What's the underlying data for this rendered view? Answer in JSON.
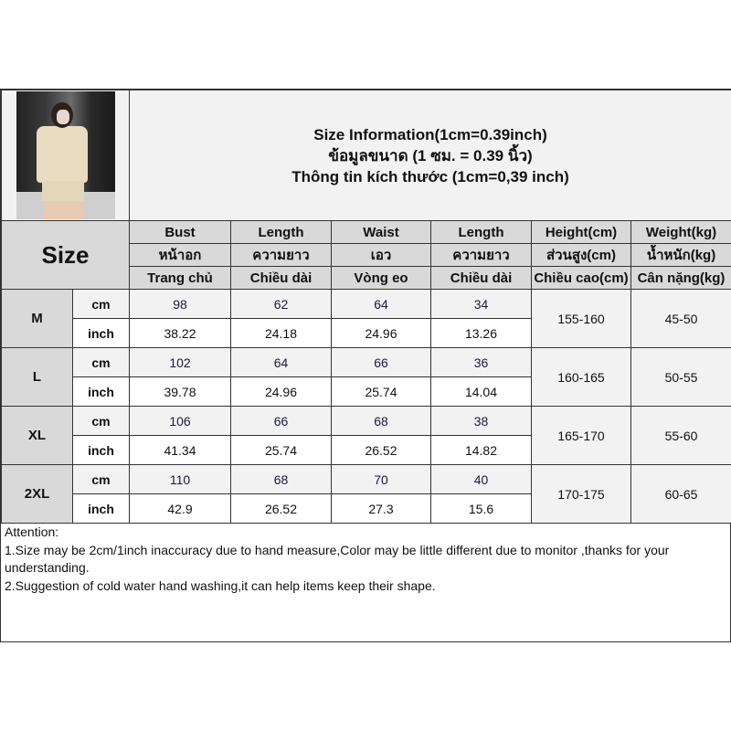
{
  "title_lines": [
    "Size Information(1cm=0.39inch)",
    "ข้อมูลขนาด (1 ซม. = 0.39 นิ้ว)",
    "Thông tin kích thước (1cm=0,39 inch)"
  ],
  "size_label": "Size",
  "columns": [
    {
      "en": "Bust",
      "th": "หน้าอก",
      "vi": "Trang chủ"
    },
    {
      "en": "Length",
      "th": "ความยาว",
      "vi": "Chiều dài"
    },
    {
      "en": "Waist",
      "th": "เอว",
      "vi": "Vòng eo"
    },
    {
      "en": "Length",
      "th": "ความยาว",
      "vi": "Chiều dài"
    },
    {
      "en": "Height(cm)",
      "th": "ส่วนสูง(cm)",
      "vi": "Chiều cao(cm)"
    },
    {
      "en": "Weight(kg)",
      "th": "น้ำหนัก(kg)",
      "vi": "Cân nặng(kg)"
    }
  ],
  "unit_labels": {
    "cm": "cm",
    "inch": "inch"
  },
  "sizes": [
    {
      "size": "M",
      "cm": [
        "98",
        "62",
        "64",
        "34"
      ],
      "inch": [
        "38.22",
        "24.18",
        "24.96",
        "13.26"
      ],
      "height": "155-160",
      "weight": "45-50"
    },
    {
      "size": "L",
      "cm": [
        "102",
        "64",
        "66",
        "36"
      ],
      "inch": [
        "39.78",
        "24.96",
        "25.74",
        "14.04"
      ],
      "height": "160-165",
      "weight": "50-55"
    },
    {
      "size": "XL",
      "cm": [
        "106",
        "66",
        "68",
        "38"
      ],
      "inch": [
        "41.34",
        "25.74",
        "26.52",
        "14.82"
      ],
      "height": "165-170",
      "weight": "55-60"
    },
    {
      "size": "2XL",
      "cm": [
        "110",
        "68",
        "70",
        "40"
      ],
      "inch": [
        "42.9",
        "26.52",
        "27.3",
        "15.6"
      ],
      "height": "170-175",
      "weight": "60-65"
    }
  ],
  "notes": [
    "Attention:",
    "1.Size may be 2cm/1inch inaccuracy due to hand measure,Color may be little different due to monitor ,thanks for your understanding.",
    "2.Suggestion of cold water hand washing,it can help items keep their shape."
  ],
  "colors": {
    "header_bg": "#d9d9d9",
    "cm_row_bg": "#f2f2f2",
    "border": "#333333"
  }
}
